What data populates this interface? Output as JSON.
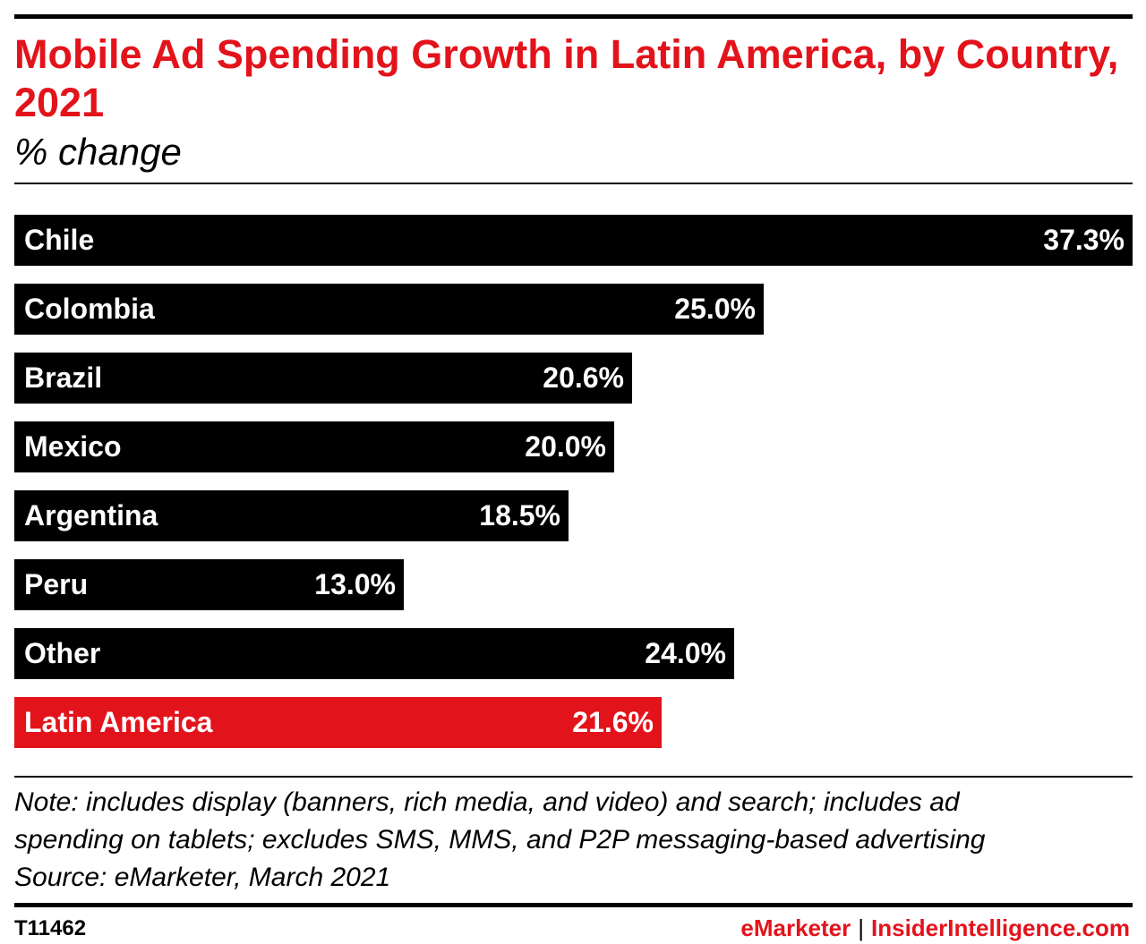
{
  "header": {
    "title": "Mobile Ad Spending Growth in Latin America, by Country, 2021",
    "subtitle": "% change"
  },
  "chart_data": {
    "type": "bar",
    "orientation": "horizontal",
    "title": "Mobile Ad Spending Growth in Latin America, by Country, 2021",
    "subtitle": "% change",
    "categories": [
      "Chile",
      "Colombia",
      "Brazil",
      "Mexico",
      "Argentina",
      "Peru",
      "Other",
      "Latin America"
    ],
    "values": [
      37.3,
      25.0,
      20.6,
      20.0,
      18.5,
      13.0,
      24.0,
      21.6
    ],
    "value_labels": [
      "37.3%",
      "25.0%",
      "20.6%",
      "20.0%",
      "18.5%",
      "13.0%",
      "24.0%",
      "21.6%"
    ],
    "xlim": [
      0,
      37.3
    ],
    "grid": false,
    "bar_color": "#000000",
    "highlight_category": "Latin America",
    "highlight_color": "#e3131b"
  },
  "notes": {
    "line1": "Note: includes display (banners, rich media, and video) and search; includes ad",
    "line2": "spending on tablets; excludes SMS, MMS, and P2P messaging-based advertising",
    "source": "Source: eMarketer, March 2021"
  },
  "footer": {
    "chart_id": "T11462",
    "brand_emarketer": "eMarketer",
    "brand_separator": "|",
    "brand_insider": "InsiderIntelligence.com"
  }
}
